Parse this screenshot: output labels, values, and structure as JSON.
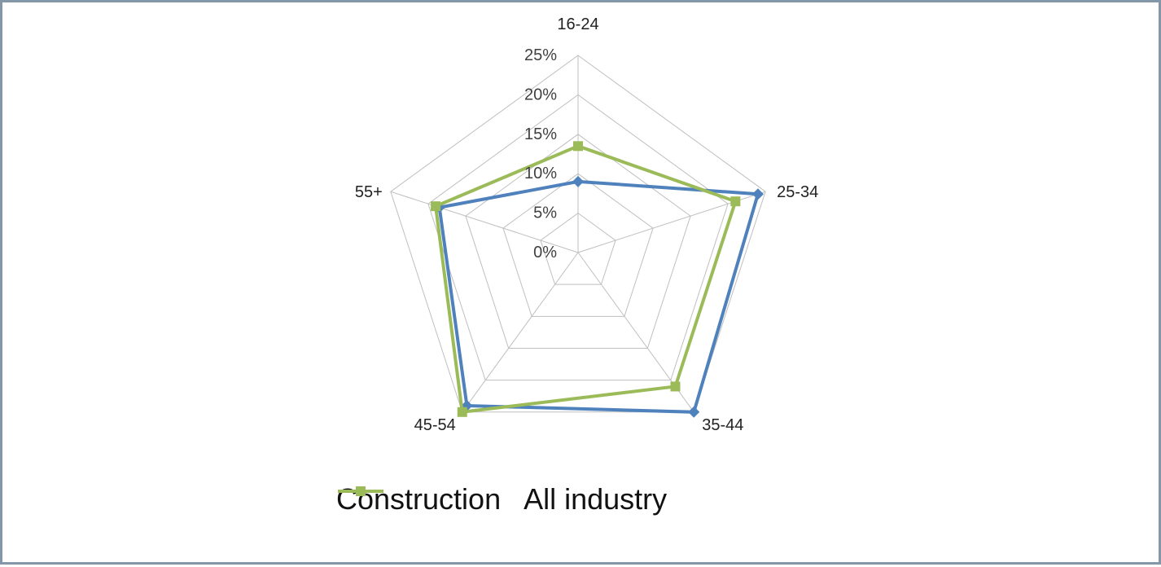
{
  "chart_data": {
    "type": "radar",
    "categories": [
      "16-24",
      "25-34",
      "35-44",
      "45-54",
      "55+"
    ],
    "rlim": [
      0,
      25
    ],
    "ticks": [
      "0%",
      "5%",
      "10%",
      "15%",
      "20%",
      "25%"
    ],
    "tick_values": [
      0,
      5,
      10,
      15,
      20,
      25
    ],
    "series": [
      {
        "name": "Construction",
        "color": "#4f81bd",
        "marker": "diamond",
        "values": [
          9,
          24,
          25,
          24,
          18.5
        ]
      },
      {
        "name": "All industry",
        "color": "#9bbb59",
        "marker": "square",
        "values": [
          13.5,
          21,
          21,
          25,
          19
        ]
      }
    ],
    "legend_position": "bottom",
    "grid": true
  }
}
